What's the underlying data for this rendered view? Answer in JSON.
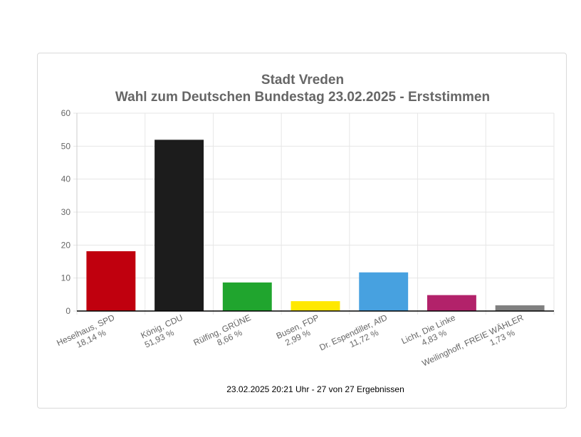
{
  "chart_data": {
    "type": "bar",
    "title": "Stadt Vreden",
    "subtitle": "Wahl zum Deutschen Bundestag 23.02.2025  - Erststimmen",
    "categories": [
      "Heselhaus, SPD",
      "König, CDU",
      "Rülfing, GRÜNE",
      "Busen, FDP",
      "Dr. Espendiller, AfD",
      "Licht, Die Linke",
      "Weilinghoff, FREIE WÄHLER"
    ],
    "value_labels": [
      "18,14 %",
      "51,93 %",
      "8,66 %",
      "2,99 %",
      "11,72 %",
      "4,83 %",
      "1,73 %"
    ],
    "values": [
      18.14,
      51.93,
      8.66,
      2.99,
      11.72,
      4.83,
      1.73
    ],
    "colors": [
      "#c0000e",
      "#1c1c1c",
      "#20a52e",
      "#ffe800",
      "#47a1e0",
      "#b2226a",
      "#808080"
    ],
    "ylim": [
      0,
      60
    ],
    "yticks": [
      "0",
      "10",
      "20",
      "30",
      "40",
      "50",
      "60"
    ],
    "grid": true,
    "xlabel": "",
    "ylabel": ""
  },
  "footer": "23.02.2025 20:21 Uhr - 27 von 27 Ergebnissen"
}
